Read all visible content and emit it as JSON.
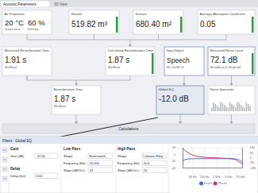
{
  "tabs": [
    "Acoustic Parameters",
    "3D View"
  ],
  "nodes": [
    {
      "title": "Air Properties",
      "fields": [
        {
          "value": "20 °C",
          "caption": "Temperature"
        },
        {
          "value": "60 %",
          "caption": "Humidity"
        }
      ]
    },
    {
      "title": "Volume",
      "value": "519.82 m³"
    },
    {
      "title": "Surface",
      "value": "680.40 m²"
    },
    {
      "title": "Average Absorption Coefficient",
      "value": "0.05"
    },
    {
      "title": "Measured Reverberation Time",
      "value": "1.91 s",
      "caption": "Mid-Band"
    },
    {
      "title": "Calculated Reverberation Time",
      "value": "1.87 s",
      "caption": "Mid-Band"
    },
    {
      "title": "Input Signal",
      "value": "Speech",
      "caption": "IEC 60268-16"
    },
    {
      "title": "Measured Noise Level",
      "value": "72.1 dB",
      "caption": "Broadband (Z-Weighted)"
    },
    {
      "title": "Reverberation Time",
      "value": "1.87 s",
      "caption": "Mid-Band"
    },
    {
      "title": "Global EQ",
      "value": "-12.0 dB"
    },
    {
      "title": "Noise Spectrum"
    },
    {
      "title": "Calculations"
    }
  ],
  "filter_panel": {
    "title": "Filters - Global EQ",
    "groups": [
      {
        "title": "Gain",
        "fields": [
          {
            "label": "Gain (dB)",
            "value": "-12.00"
          }
        ]
      },
      {
        "title": "Delay",
        "fields": [
          {
            "label": "Delay (ms)",
            "value": "0.00"
          }
        ]
      },
      {
        "title": "Low Pass",
        "fields": [
          {
            "label": "Shape",
            "value": "Butterworth"
          },
          {
            "label": "Frequency (Hz)",
            "value": "16,000"
          },
          {
            "label": "Slope (dB/Oct.)",
            "value": "24"
          }
        ]
      },
      {
        "title": "High Pass",
        "fields": [
          {
            "label": "Shape",
            "value": "Linkwitz-Riley"
          },
          {
            "label": "Frequency (Hz)",
            "value": "20.0"
          },
          {
            "label": "Slope (dB/Oct.)",
            "value": "24"
          }
        ]
      }
    ]
  },
  "chart_data": {
    "type": "line",
    "log": "x",
    "grid": true,
    "legend": "bottom",
    "x": [
      20,
      31.5,
      63,
      125,
      250,
      500,
      1000,
      2000,
      4000,
      8000,
      16000,
      20000
    ],
    "xlim": [
      20,
      20000
    ],
    "xticks": [
      {
        "value": 63,
        "label": "63 Hz"
      },
      {
        "value": 250,
        "label": "250 Hz"
      },
      {
        "value": 1000,
        "label": "1 kHz"
      },
      {
        "value": 4000,
        "label": "4 kHz"
      },
      {
        "value": 16000,
        "label": "16 kHz"
      }
    ],
    "ylim": [
      -40,
      20
    ],
    "yticks": [
      -40,
      -20,
      0,
      20
    ],
    "y2lim": [
      -180,
      180
    ],
    "y2ticks": [
      -180,
      -90,
      0,
      90,
      180
    ],
    "series": [
      {
        "name": "Level",
        "color": "#3a6fd8",
        "values": [
          -18,
          -13.5,
          -12.1,
          -12,
          -12,
          -12,
          -12,
          -12,
          -12,
          -12.4,
          -18,
          -25
        ]
      },
      {
        "name": "Phase",
        "color": "#c8307a",
        "axis": "y2",
        "values": [
          170,
          110,
          50,
          25,
          12,
          6,
          2,
          -4,
          -10,
          -25,
          -90,
          -120
        ]
      }
    ]
  }
}
